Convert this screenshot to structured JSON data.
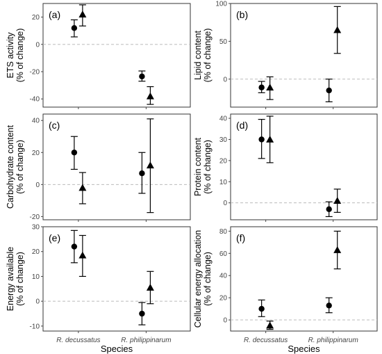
{
  "colors": {
    "marker": "#000000",
    "panel_border": "#333333",
    "zero_line": "#bbbbbb",
    "tick": "#444444"
  },
  "legend": {
    "shown": false
  },
  "chart_data": [
    {
      "type": "scatter",
      "panel_label": "(a)",
      "ylabel_lines": [
        "ETS activity",
        "(% of change)"
      ],
      "ylim": [
        -46,
        30
      ],
      "yticks": [
        -40,
        -20,
        0,
        20
      ],
      "categories": [
        "R. decussatus",
        "R. philippinarum"
      ],
      "show_x_tick_labels": false,
      "xlabel": "",
      "series": [
        {
          "marker": "circle",
          "values": [
            12,
            -23.5
          ],
          "err_low": [
            5.5,
            -27
          ],
          "err_high": [
            18,
            -19.5
          ]
        },
        {
          "marker": "triangle",
          "values": [
            22,
            -38
          ],
          "err_low": [
            13.5,
            -44
          ],
          "err_high": [
            29,
            -31
          ]
        }
      ]
    },
    {
      "type": "scatter",
      "panel_label": "(b)",
      "ylabel_lines": [
        "Lipid content",
        "(% of change)"
      ],
      "ylim": [
        -37,
        100
      ],
      "yticks": [
        0,
        50,
        100
      ],
      "categories": [
        "R. decussatus",
        "R. philippinarum"
      ],
      "show_x_tick_labels": false,
      "xlabel": "",
      "series": [
        {
          "marker": "circle",
          "values": [
            -11,
            -15
          ],
          "err_low": [
            -18,
            -30
          ],
          "err_high": [
            -3,
            0
          ]
        },
        {
          "marker": "triangle",
          "values": [
            -11,
            65
          ],
          "err_low": [
            -27,
            34
          ],
          "err_high": [
            3,
            96
          ]
        }
      ]
    },
    {
      "type": "scatter",
      "panel_label": "(c)",
      "ylabel_lines": [
        "Carbohydrate content",
        "(% of change)"
      ],
      "ylim": [
        -22,
        44
      ],
      "yticks": [
        -20,
        0,
        20,
        40
      ],
      "categories": [
        "R. decussatus",
        "R. philippinarum"
      ],
      "show_x_tick_labels": false,
      "xlabel": "",
      "series": [
        {
          "marker": "circle",
          "values": [
            20,
            7
          ],
          "err_low": [
            9.5,
            -5.5
          ],
          "err_high": [
            30,
            20
          ]
        },
        {
          "marker": "triangle",
          "values": [
            -2,
            12
          ],
          "err_low": [
            -12,
            -17.5
          ],
          "err_high": [
            7.5,
            41
          ]
        }
      ]
    },
    {
      "type": "scatter",
      "panel_label": "(d)",
      "ylabel_lines": [
        "Protein content",
        "(% of change)"
      ],
      "ylim": [
        -8,
        42
      ],
      "yticks": [
        0,
        10,
        20,
        30,
        40
      ],
      "categories": [
        "R. decussatus",
        "R. philippinarum"
      ],
      "show_x_tick_labels": false,
      "xlabel": "",
      "series": [
        {
          "marker": "circle",
          "values": [
            30,
            -3
          ],
          "err_low": [
            21,
            -6.5
          ],
          "err_high": [
            39.5,
            0.5
          ]
        },
        {
          "marker": "triangle",
          "values": [
            30,
            1
          ],
          "err_low": [
            19,
            -4.5
          ],
          "err_high": [
            41,
            6.5
          ]
        }
      ]
    },
    {
      "type": "scatter",
      "panel_label": "(e)",
      "ylabel_lines": [
        "Energy available",
        "(% of change)"
      ],
      "ylim": [
        -12,
        30
      ],
      "yticks": [
        -10,
        0,
        10,
        20,
        30
      ],
      "categories": [
        "R. decussatus",
        "R. philippinarum"
      ],
      "show_x_tick_labels": true,
      "xlabel": "Species",
      "series": [
        {
          "marker": "circle",
          "values": [
            22,
            -5
          ],
          "err_low": [
            15.5,
            -9.5
          ],
          "err_high": [
            28.5,
            -0.5
          ]
        },
        {
          "marker": "triangle",
          "values": [
            18.5,
            5.5
          ],
          "err_low": [
            10,
            -1
          ],
          "err_high": [
            26.5,
            12
          ]
        }
      ]
    },
    {
      "type": "scatter",
      "panel_label": "(f)",
      "ylabel_lines": [
        "Cellular energy allocation",
        "(% of change)"
      ],
      "ylim": [
        -10,
        84
      ],
      "yticks": [
        0,
        20,
        40,
        60,
        80
      ],
      "categories": [
        "R. decussatus",
        "R. philippinarum"
      ],
      "show_x_tick_labels": true,
      "xlabel": "Species",
      "series": [
        {
          "marker": "circle",
          "values": [
            10,
            13
          ],
          "err_low": [
            3,
            6.5
          ],
          "err_high": [
            18,
            20
          ]
        },
        {
          "marker": "triangle",
          "values": [
            -5,
            63
          ],
          "err_low": [
            -8.5,
            46
          ],
          "err_high": [
            -1,
            80
          ]
        }
      ]
    }
  ]
}
